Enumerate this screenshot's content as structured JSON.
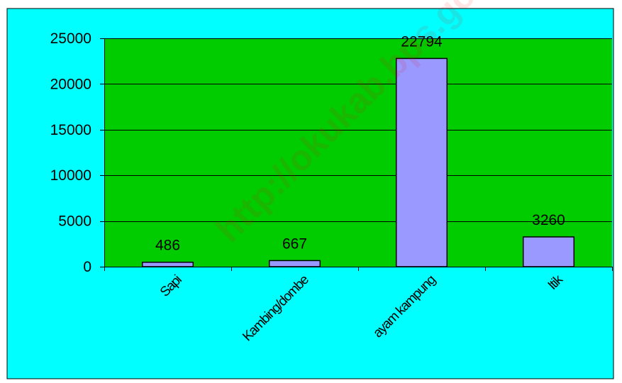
{
  "chart_data": {
    "type": "bar",
    "categories": [
      "Sapi",
      "Kambing/dombe",
      "ayam kampung",
      "Itik"
    ],
    "values": [
      486,
      667,
      22794,
      3260
    ],
    "data_labels": [
      "486",
      "667",
      "22794",
      "3260"
    ],
    "title": "",
    "xlabel": "",
    "ylabel": "",
    "ylim": [
      0,
      25000
    ],
    "yticks": [
      0,
      5000,
      10000,
      15000,
      20000,
      25000
    ],
    "ytick_labels": [
      "0",
      "5000",
      "10000",
      "15000",
      "20000",
      "25000"
    ],
    "grid": true,
    "legend": "none",
    "colors": {
      "outer_background": "#00ffff",
      "plot_background": "#00cc00",
      "bar_fill": "#9999ff",
      "bar_stroke": "#000000",
      "grid": "#000000",
      "text": "#000000",
      "watermark": "#ff0000"
    }
  },
  "watermark": "http://okukab.bps.go.id"
}
